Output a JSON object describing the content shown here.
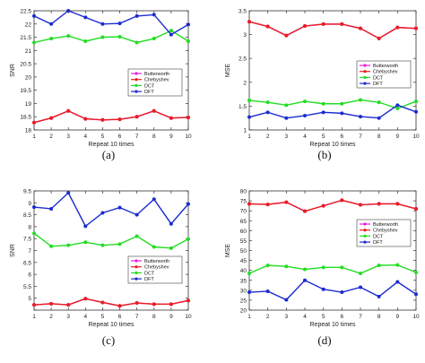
{
  "series_colors": [
    "#e81ee0",
    "#e81e1e",
    "#22dd22",
    "#1b2bd0"
  ],
  "chart_data": [
    {
      "type": "line",
      "caption": "(a)",
      "xlabel": "Repeat 10 times",
      "ylabel": "SNR",
      "xlim": [
        1,
        10
      ],
      "ylim": [
        18,
        22.5
      ],
      "xticks": [
        1,
        2,
        3,
        4,
        5,
        6,
        7,
        8,
        9,
        10
      ],
      "yticks": [
        18,
        18.5,
        19,
        19.5,
        20,
        20.5,
        21,
        21.5,
        22,
        22.5
      ],
      "ytick_labels": [
        "18",
        "18.5",
        "19",
        "19.5",
        "20",
        "20.5",
        "21",
        "21.5",
        "22",
        "22.5"
      ],
      "legend_position": "center-right",
      "x": [
        1,
        2,
        3,
        4,
        5,
        6,
        7,
        8,
        9,
        10
      ],
      "series": [
        {
          "name": "Butterworth",
          "values": [
            18.28,
            18.45,
            18.72,
            18.42,
            18.38,
            18.4,
            18.5,
            18.72,
            18.45,
            18.47
          ]
        },
        {
          "name": "Chebyshev",
          "values": [
            18.28,
            18.45,
            18.72,
            18.42,
            18.38,
            18.4,
            18.5,
            18.72,
            18.45,
            18.47
          ]
        },
        {
          "name": "DCT",
          "values": [
            21.3,
            21.45,
            21.55,
            21.35,
            21.5,
            21.52,
            21.3,
            21.45,
            21.75,
            21.35
          ]
        },
        {
          "name": "DFT",
          "values": [
            22.3,
            22.0,
            22.5,
            22.25,
            22.0,
            22.02,
            22.3,
            22.35,
            21.6,
            21.98
          ]
        }
      ]
    },
    {
      "type": "line",
      "caption": "(b)",
      "xlabel": "Repeat 10 times",
      "ylabel": "MSE",
      "xlim": [
        1,
        10
      ],
      "ylim": [
        1,
        3.5
      ],
      "xticks": [
        1,
        2,
        3,
        4,
        5,
        6,
        7,
        8,
        9,
        10
      ],
      "yticks": [
        1,
        1.5,
        2,
        2.5,
        3,
        3.5
      ],
      "ytick_labels": [
        "1",
        "1.5",
        "2",
        "2.5",
        "3",
        "3.5"
      ],
      "legend_position": "center-right",
      "x": [
        1,
        2,
        3,
        4,
        5,
        6,
        7,
        8,
        9,
        10
      ],
      "series": [
        {
          "name": "Butterworth",
          "values": [
            3.27,
            3.17,
            2.98,
            3.18,
            3.22,
            3.22,
            3.13,
            2.92,
            3.15,
            3.13
          ]
        },
        {
          "name": "Chebyshev",
          "values": [
            3.27,
            3.17,
            2.98,
            3.18,
            3.22,
            3.22,
            3.13,
            2.92,
            3.15,
            3.13
          ]
        },
        {
          "name": "DCT",
          "values": [
            1.62,
            1.58,
            1.52,
            1.6,
            1.55,
            1.55,
            1.63,
            1.58,
            1.45,
            1.6
          ]
        },
        {
          "name": "DFT",
          "values": [
            1.27,
            1.37,
            1.25,
            1.3,
            1.37,
            1.35,
            1.28,
            1.25,
            1.52,
            1.38
          ]
        }
      ]
    },
    {
      "type": "line",
      "caption": "(c)",
      "xlabel": "Repeat 10 times",
      "ylabel": "SNR",
      "xlim": [
        1,
        10
      ],
      "ylim": [
        4.5,
        9.5
      ],
      "xticks": [
        1,
        2,
        3,
        4,
        5,
        6,
        7,
        8,
        9,
        10
      ],
      "yticks": [
        4.5,
        5,
        5.5,
        6,
        6.5,
        7,
        7.5,
        8,
        8.5,
        9,
        9.5
      ],
      "ytick_labels": [
        "",
        "5",
        "5.5",
        "6",
        "6.5",
        "7",
        "7.5",
        "8",
        "8.5",
        "9",
        "9.5"
      ],
      "legend_position": "center-right",
      "x": [
        1,
        2,
        3,
        4,
        5,
        6,
        7,
        8,
        9,
        10
      ],
      "series": [
        {
          "name": "Butterworth",
          "values": [
            4.72,
            4.77,
            4.72,
            4.98,
            4.82,
            4.68,
            4.8,
            4.75,
            4.75,
            4.9
          ]
        },
        {
          "name": "Chebyshev",
          "values": [
            4.72,
            4.77,
            4.72,
            4.98,
            4.82,
            4.68,
            4.8,
            4.75,
            4.75,
            4.9
          ]
        },
        {
          "name": "DCT",
          "values": [
            7.72,
            7.18,
            7.22,
            7.35,
            7.22,
            7.27,
            7.6,
            7.15,
            7.1,
            7.48
          ]
        },
        {
          "name": "DFT",
          "values": [
            8.82,
            8.75,
            9.42,
            8.02,
            8.58,
            8.8,
            8.5,
            9.15,
            8.12,
            8.95
          ]
        }
      ]
    },
    {
      "type": "line",
      "caption": "(d)",
      "xlabel": "Repeat 10 times",
      "ylabel": "MSE",
      "xlim": [
        1,
        10
      ],
      "ylim": [
        20,
        80
      ],
      "xticks": [
        1,
        2,
        3,
        4,
        5,
        6,
        7,
        8,
        9,
        10
      ],
      "yticks": [
        20,
        25,
        30,
        35,
        40,
        45,
        50,
        55,
        60,
        65,
        70,
        75,
        80
      ],
      "ytick_labels": [
        "20",
        "25",
        "30",
        "35",
        "40",
        "45",
        "50",
        "55",
        "60",
        "65",
        "70",
        "75",
        "80"
      ],
      "legend_position": "upper-right",
      "x": [
        1,
        2,
        3,
        4,
        5,
        6,
        7,
        8,
        9,
        10
      ],
      "series": [
        {
          "name": "Butterworth",
          "values": [
            73.5,
            73.2,
            74.3,
            69.8,
            72.5,
            75.3,
            73.0,
            73.5,
            73.5,
            71.0
          ]
        },
        {
          "name": "Chebyshev",
          "values": [
            73.5,
            73.2,
            74.3,
            69.8,
            72.5,
            75.3,
            73.0,
            73.5,
            73.5,
            71.0
          ]
        },
        {
          "name": "DCT",
          "values": [
            38.5,
            42.5,
            42.0,
            40.5,
            41.5,
            41.5,
            38.5,
            42.5,
            42.7,
            39.0
          ]
        },
        {
          "name": "DFT",
          "values": [
            29.0,
            29.5,
            25.2,
            35.0,
            30.5,
            29.0,
            31.5,
            26.8,
            34.2,
            28.0
          ]
        }
      ]
    }
  ]
}
